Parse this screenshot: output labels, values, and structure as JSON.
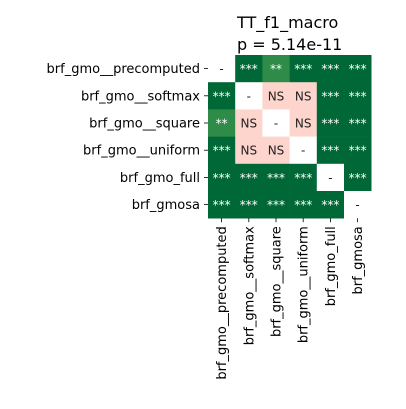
{
  "chart_data": {
    "type": "heatmap",
    "title_lines": [
      "TT_f1_macro",
      "p = 5.14e-11"
    ],
    "rows": [
      "brf_gmo__precomputed",
      "brf_gmo__softmax",
      "brf_gmo__square",
      "brf_gmo__uniform",
      "brf_gmo_full",
      "brf_gmosa"
    ],
    "columns": [
      "brf_gmo__precomputed",
      "brf_gmo__softmax",
      "brf_gmo__square",
      "brf_gmo__uniform",
      "brf_gmo_full",
      "brf_gmosa"
    ],
    "cells": [
      [
        "-",
        "***",
        "**",
        "***",
        "***",
        "***"
      ],
      [
        "***",
        "-",
        "NS",
        "NS",
        "***",
        "***"
      ],
      [
        "**",
        "NS",
        "-",
        "NS",
        "***",
        "***"
      ],
      [
        "***",
        "NS",
        "NS",
        "-",
        "***",
        "***"
      ],
      [
        "***",
        "***",
        "***",
        "***",
        "-",
        "***"
      ],
      [
        "***",
        "***",
        "***",
        "***",
        "***",
        "-"
      ]
    ],
    "colors": {
      "***": "#006837",
      "**": "#2e8b48",
      "NS": "#fdd5cd",
      "-": "#ffffff"
    },
    "text_colors": {
      "***": "#ffffff",
      "**": "#ffffff",
      "NS": "#222222",
      "-": "#222222"
    }
  }
}
